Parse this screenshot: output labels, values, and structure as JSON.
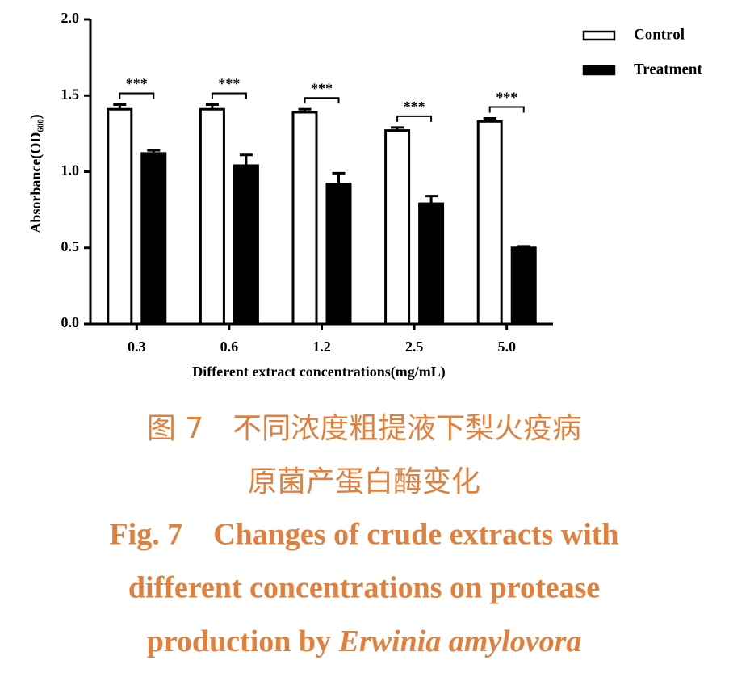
{
  "chart_data": {
    "type": "bar",
    "ylabel": "Absorbance(OD₆₀₀)",
    "xlabel": "Different  extract  concentrations(mg/mL)",
    "categories": [
      "0.3",
      "0.6",
      "1.2",
      "2.5",
      "5.0"
    ],
    "series": [
      {
        "name": "Control",
        "color": "#ffffff",
        "values": [
          1.41,
          1.41,
          1.39,
          1.27,
          1.33
        ],
        "errors": [
          0.03,
          0.03,
          0.02,
          0.02,
          0.02
        ]
      },
      {
        "name": "Treatment",
        "color": "#000000",
        "values": [
          1.12,
          1.04,
          0.92,
          0.79,
          0.5
        ],
        "errors": [
          0.02,
          0.07,
          0.07,
          0.05,
          0.01
        ]
      }
    ],
    "significance": [
      "***",
      "***",
      "***",
      "***",
      "***"
    ],
    "ylim": [
      0,
      2
    ],
    "yticks": [
      {
        "value": 0,
        "label": "0.0"
      },
      0.5,
      {
        "value": 1,
        "label": "1.0"
      },
      1.5,
      {
        "value": 2,
        "label": "2.0"
      }
    ],
    "legend": "top-right"
  },
  "caption": {
    "cn": [
      "图 7　不同浓度粗提液下梨火疫病",
      "原菌产蛋白酶变化"
    ],
    "en": [
      "Fig. 7　Changes of crude extracts with",
      "different concentrations on protease",
      "production by"
    ],
    "en_italic": "Erwinia amylovora"
  }
}
